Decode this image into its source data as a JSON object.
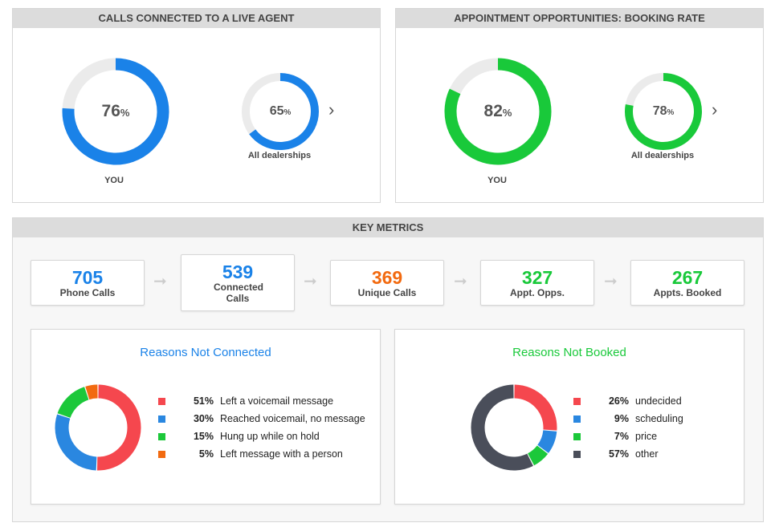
{
  "live_agent": {
    "title": "Calls Connected to a Live Agent",
    "you": {
      "value": 76,
      "label": "YOU",
      "unit": "%"
    },
    "all": {
      "value": 65,
      "label": "All dealerships",
      "unit": "%"
    },
    "color": "#1a82e8"
  },
  "booking_rate": {
    "title": "Appointment Opportunities: Booking Rate",
    "you": {
      "value": 82,
      "label": "YOU",
      "unit": "%"
    },
    "all": {
      "value": 78,
      "label": "All dealerships",
      "unit": "%"
    },
    "color": "#19c93a"
  },
  "track_color": "#ebebeb",
  "next_icon": "chevron-right-icon",
  "key_metrics": {
    "title": "Key Metrics",
    "items": [
      {
        "value": "705",
        "label": "Phone Calls",
        "color": "#1a82e8"
      },
      {
        "value": "539",
        "label": "Connected Calls",
        "color": "#1a82e8"
      },
      {
        "value": "369",
        "label": "Unique Calls",
        "color": "#f26a10"
      },
      {
        "value": "327",
        "label": "Appt. Opps.",
        "color": "#19c93a"
      },
      {
        "value": "267",
        "label": "Appts. Booked",
        "color": "#19c93a"
      }
    ]
  },
  "chart_data": [
    {
      "type": "pie",
      "title": "Reasons Not Connected",
      "title_color": "#1a82e8",
      "categories": [
        "Left a voicemail message",
        "Reached voicemail, no message",
        "Hung up while on hold",
        "Left message with a person"
      ],
      "values": [
        51,
        30,
        15,
        5
      ],
      "labels": [
        "51%",
        "30%",
        "15%",
        "5%"
      ],
      "colors": [
        "#f5474e",
        "#2a87e0",
        "#1cc83a",
        "#f26a10"
      ],
      "legend": "right"
    },
    {
      "type": "pie",
      "title": "Reasons Not Booked",
      "title_color": "#19c93a",
      "categories": [
        "undecided",
        "scheduling",
        "price",
        "other"
      ],
      "values": [
        26,
        9,
        7,
        57
      ],
      "labels": [
        "26%",
        "9%",
        "7%",
        "57%"
      ],
      "colors": [
        "#f5474e",
        "#2a87e0",
        "#1cc83a",
        "#4a4e5a"
      ],
      "legend": "right"
    }
  ]
}
